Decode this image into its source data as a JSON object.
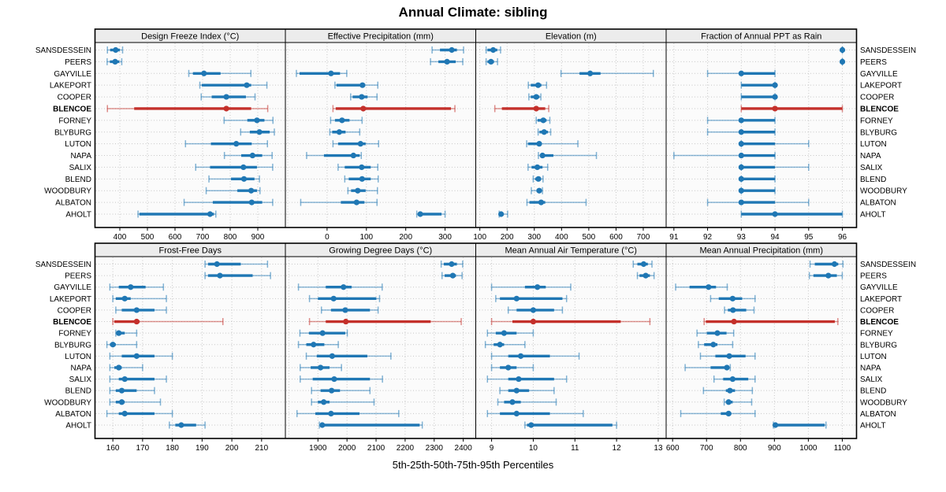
{
  "title": "Annual Climate: sibling",
  "caption": "5th-25th-50th-75th-95th Percentiles",
  "colors": {
    "series": "#1f77b4",
    "highlight": "#c4302b",
    "strip_bg": "#ececec",
    "panel_bg": "#fbfbfb",
    "grid": "#c6c6c6",
    "border": "#000000",
    "text": "#000000"
  },
  "chart_data": {
    "type": "dotplot",
    "title": "Annual Climate: sibling",
    "caption": "5th-25th-50th-75th-95th Percentiles",
    "statistic_labels": [
      "5th",
      "25th",
      "50th",
      "75th",
      "95th"
    ],
    "categories": [
      "SANSDESSEIN",
      "PEERS",
      "GAYVILLE",
      "LAKEPORT",
      "COOPER",
      "BLENCOE",
      "FORNEY",
      "BLYBURG",
      "LUTON",
      "NAPA",
      "SALIX",
      "BLEND",
      "WOODBURY",
      "ALBATON",
      "AHOLT"
    ],
    "highlight_category": "BLENCOE",
    "panel_grid": [
      2,
      4
    ],
    "panels": [
      {
        "title": "Design Freeze Index (°C)",
        "grid_row": 0,
        "ticks": [
          400,
          500,
          600,
          700,
          800,
          900
        ],
        "extra_grid": [],
        "domain": [
          310,
          1000
        ],
        "series": [
          [
            355,
            365,
            385,
            400,
            410
          ],
          [
            354,
            364,
            383,
            398,
            407
          ],
          [
            650,
            665,
            705,
            765,
            875
          ],
          [
            690,
            697,
            860,
            876,
            933
          ],
          [
            695,
            733,
            786,
            857,
            890
          ],
          [
            355,
            452,
            786,
            876,
            936
          ],
          [
            778,
            862,
            897,
            924,
            955
          ],
          [
            838,
            871,
            906,
            943,
            960
          ],
          [
            638,
            730,
            822,
            878,
            935
          ],
          [
            779,
            840,
            881,
            916,
            952
          ],
          [
            675,
            727,
            848,
            897,
            954
          ],
          [
            723,
            803,
            850,
            888,
            906
          ],
          [
            713,
            826,
            876,
            897,
            908
          ],
          [
            633,
            737,
            878,
            916,
            954
          ],
          [
            466,
            471,
            727,
            741,
            748
          ]
        ]
      },
      {
        "title": "Effective Precipitation (mm)",
        "grid_row": 0,
        "ticks": [
          0,
          100,
          200,
          300
        ],
        "extra_grid": [
          -100
        ],
        "domain": [
          -106,
          378
        ],
        "series": [
          [
            267,
            287,
            317,
            330,
            347
          ],
          [
            263,
            283,
            305,
            327,
            345
          ],
          [
            -78,
            -70,
            10,
            33,
            50
          ],
          [
            20,
            24,
            90,
            97,
            129
          ],
          [
            60,
            65,
            88,
            103,
            127
          ],
          [
            15,
            22,
            92,
            315,
            325
          ],
          [
            9,
            20,
            38,
            57,
            89
          ],
          [
            7,
            13,
            31,
            47,
            83
          ],
          [
            15,
            28,
            85,
            98,
            131
          ],
          [
            -52,
            -8,
            67,
            83,
            87
          ],
          [
            28,
            45,
            88,
            111,
            129
          ],
          [
            45,
            55,
            89,
            111,
            130
          ],
          [
            53,
            61,
            78,
            98,
            128
          ],
          [
            -67,
            35,
            75,
            95,
            127
          ],
          [
            228,
            231,
            237,
            291,
            300
          ]
        ]
      },
      {
        "title": "Elevation (m)",
        "grid_row": 0,
        "ticks": [
          100,
          200,
          300,
          400,
          500,
          600,
          700
        ],
        "extra_grid": [],
        "domain": [
          85,
          784
        ],
        "series": [
          [
            123,
            128,
            149,
            164,
            176
          ],
          [
            123,
            128,
            141,
            152,
            165
          ],
          [
            398,
            466,
            505,
            543,
            737
          ],
          [
            278,
            287,
            314,
            326,
            345
          ],
          [
            280,
            287,
            307,
            319,
            324
          ],
          [
            155,
            181,
            307,
            340,
            353
          ],
          [
            307,
            312,
            333,
            345,
            357
          ],
          [
            314,
            319,
            336,
            350,
            360
          ],
          [
            272,
            277,
            318,
            325,
            460
          ],
          [
            315,
            322,
            330,
            370,
            528
          ],
          [
            277,
            290,
            311,
            330,
            349
          ],
          [
            296,
            303,
            315,
            325,
            332
          ],
          [
            289,
            308,
            318,
            326,
            330
          ],
          [
            273,
            282,
            325,
            340,
            490
          ],
          [
            171,
            173,
            178,
            187,
            202
          ]
        ]
      },
      {
        "title": "Fraction of Annual PPT as Rain",
        "grid_row": 0,
        "ticks": [
          91,
          92,
          93,
          94,
          95,
          96
        ],
        "extra_grid": [],
        "domain": [
          90.77,
          96.42
        ],
        "series": [
          [
            96,
            96,
            96,
            96,
            96
          ],
          [
            96,
            96,
            96,
            96,
            96
          ],
          [
            92,
            93,
            93,
            94,
            94
          ],
          [
            93,
            93,
            94,
            94,
            94
          ],
          [
            93,
            93,
            94,
            94,
            94
          ],
          [
            93,
            93,
            94,
            96,
            96
          ],
          [
            92,
            93,
            93,
            94,
            94
          ],
          [
            92,
            93,
            93,
            94,
            94
          ],
          [
            93,
            93,
            93,
            94,
            95
          ],
          [
            91,
            93,
            93,
            94,
            94
          ],
          [
            93,
            93,
            93,
            94,
            95
          ],
          [
            93,
            93,
            93,
            94,
            94
          ],
          [
            93,
            93,
            93,
            94,
            94
          ],
          [
            92,
            93,
            93,
            94,
            95
          ],
          [
            93,
            93,
            94,
            96,
            96
          ]
        ]
      },
      {
        "title": "Frost-Free Days",
        "grid_row": 1,
        "ticks": [
          160,
          170,
          180,
          190,
          200,
          210
        ],
        "extra_grid": [],
        "domain": [
          154,
          218
        ],
        "series": [
          [
            191,
            192,
            195,
            203,
            212
          ],
          [
            191,
            192,
            196,
            207,
            213
          ],
          [
            159,
            162,
            166,
            171,
            177
          ],
          [
            160,
            161,
            164,
            166,
            178
          ],
          [
            161,
            163,
            168,
            174,
            178
          ],
          [
            160,
            160.5,
            168,
            169,
            197
          ],
          [
            161,
            161.5,
            162,
            164,
            168
          ],
          [
            158,
            159,
            160,
            161,
            168
          ],
          [
            159,
            163,
            168,
            174,
            180
          ],
          [
            159,
            160.5,
            162,
            163,
            170
          ],
          [
            159,
            162,
            164,
            174,
            178
          ],
          [
            159,
            161,
            163,
            168,
            174
          ],
          [
            159,
            161,
            163,
            164,
            176
          ],
          [
            158,
            162,
            164,
            174,
            180
          ],
          [
            179,
            181,
            183,
            188,
            191
          ]
        ]
      },
      {
        "title": "Growing Degree Days (°C)",
        "grid_row": 1,
        "ticks": [
          1900,
          2000,
          2100,
          2200,
          2300,
          2400
        ],
        "extra_grid": [
          1800
        ],
        "domain": [
          1788,
          2443
        ],
        "series": [
          [
            2324,
            2333,
            2360,
            2378,
            2398
          ],
          [
            2327,
            2336,
            2364,
            2375,
            2396
          ],
          [
            1833,
            1927,
            1988,
            2016,
            2121
          ],
          [
            1871,
            1900,
            1954,
            2101,
            2112
          ],
          [
            1912,
            1945,
            1994,
            2079,
            2107
          ],
          [
            1871,
            1927,
            1996,
            2288,
            2393
          ],
          [
            1838,
            1869,
            1916,
            1994,
            2001
          ],
          [
            1833,
            1860,
            1885,
            1922,
            1970
          ],
          [
            1860,
            1896,
            1949,
            2070,
            2151
          ],
          [
            1839,
            1875,
            1909,
            1940,
            1981
          ],
          [
            1839,
            1882,
            1956,
            2079,
            2122
          ],
          [
            1878,
            1909,
            1947,
            1976,
            2079
          ],
          [
            1878,
            1900,
            1920,
            1940,
            2093
          ],
          [
            1828,
            1891,
            1945,
            2043,
            2178
          ],
          [
            1905,
            1910,
            1915,
            2250,
            2259
          ]
        ]
      },
      {
        "title": "Mean Annual Air Temperature (°C)",
        "grid_row": 1,
        "ticks": [
          9,
          10,
          11,
          12,
          13
        ],
        "extra_grid": [],
        "domain": [
          8.62,
          13.19
        ],
        "series": [
          [
            12.4,
            12.5,
            12.65,
            12.75,
            12.85
          ],
          [
            12.5,
            12.55,
            12.7,
            12.8,
            12.9
          ],
          [
            9.0,
            9.8,
            10.1,
            10.3,
            10.9
          ],
          [
            9.1,
            9.2,
            9.6,
            10.7,
            10.8
          ],
          [
            9.4,
            9.6,
            10.0,
            10.5,
            10.7
          ],
          [
            9.0,
            9.5,
            10.0,
            12.1,
            12.8
          ],
          [
            8.9,
            9.1,
            9.3,
            9.6,
            10.0
          ],
          [
            8.85,
            9.05,
            9.2,
            9.3,
            9.8
          ],
          [
            9.0,
            9.4,
            9.7,
            10.4,
            11.1
          ],
          [
            9.0,
            9.2,
            9.4,
            9.6,
            10.0
          ],
          [
            8.9,
            9.4,
            9.65,
            10.5,
            10.8
          ],
          [
            9.2,
            9.4,
            9.6,
            9.9,
            10.5
          ],
          [
            9.15,
            9.3,
            9.5,
            9.7,
            10.55
          ],
          [
            8.9,
            9.2,
            9.6,
            10.4,
            11.2
          ],
          [
            9.8,
            9.85,
            9.95,
            11.9,
            12.0
          ]
        ]
      },
      {
        "title": "Mean Annual Precipitation (mm)",
        "grid_row": 1,
        "ticks": [
          600,
          700,
          800,
          900,
          1000,
          1100
        ],
        "extra_grid": [],
        "domain": [
          581,
          1142
        ],
        "series": [
          [
            1005,
            1019,
            1077,
            1088,
            1102
          ],
          [
            1003,
            1015,
            1059,
            1084,
            1100
          ],
          [
            609,
            650,
            706,
            728,
            761
          ],
          [
            712,
            736,
            777,
            805,
            843
          ],
          [
            753,
            763,
            778,
            817,
            840
          ],
          [
            693,
            698,
            781,
            1078,
            1087
          ],
          [
            672,
            701,
            732,
            759,
            780
          ],
          [
            676,
            693,
            720,
            732,
            777
          ],
          [
            682,
            726,
            767,
            815,
            843
          ],
          [
            637,
            712,
            760,
            766,
            770
          ],
          [
            722,
            749,
            777,
            823,
            843
          ],
          [
            691,
            757,
            769,
            784,
            835
          ],
          [
            752,
            757,
            765,
            777,
            833
          ],
          [
            624,
            742,
            765,
            773,
            843
          ],
          [
            897,
            900,
            903,
            1048,
            1052
          ]
        ]
      }
    ]
  }
}
